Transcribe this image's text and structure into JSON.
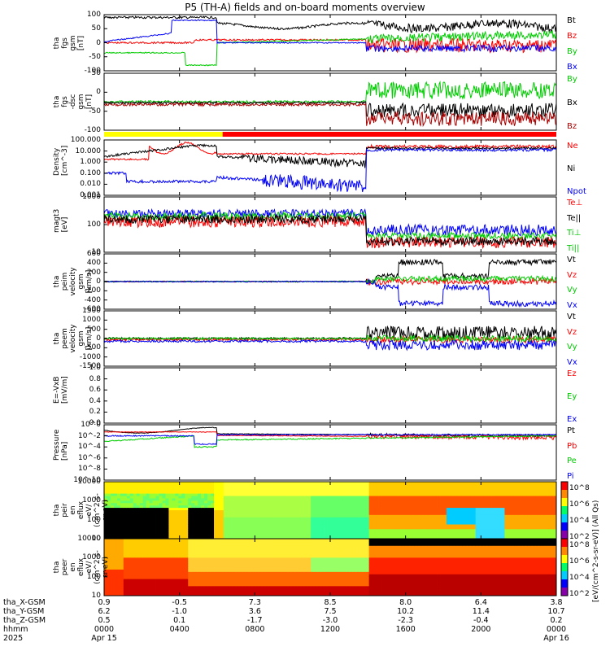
{
  "title": "P5 (TH-A) fields and on-board moments overview",
  "chart_data": [
    {
      "type": "line",
      "ylabel": "tha\nfgs\ngsm\n[nT]",
      "yticks": [
        "100",
        "50",
        "0",
        "-50",
        "-100"
      ],
      "ylim": [
        -100,
        100
      ],
      "series": [
        {
          "name": "Bt",
          "color": "#000000"
        },
        {
          "name": "Bz",
          "color": "#ff0000"
        },
        {
          "name": "By",
          "color": "#00cc00"
        },
        {
          "name": "Bx",
          "color": "#0000ff"
        }
      ]
    },
    {
      "type": "line",
      "ylabel": "tha\nfgs\n-dsc\ngsm\n[nT]",
      "yticks": [
        "50",
        "0",
        "-50",
        "-100"
      ],
      "ylim": [
        -125,
        75
      ],
      "series": [
        {
          "name": "By",
          "color": "#00cc00"
        },
        {
          "name": "Bx",
          "color": "#000000"
        },
        {
          "name": "Bz",
          "color": "#aa0000"
        }
      ]
    },
    {
      "type": "line",
      "ylabel": "Density\n[cm^-3]",
      "yticks": [
        "100.000",
        "10.000",
        "1.000",
        "0.100",
        "0.010",
        "0.001"
      ],
      "log": true,
      "series": [
        {
          "name": "Ne",
          "color": "#ff0000"
        },
        {
          "name": "Ni",
          "color": "#000000"
        },
        {
          "name": "Npot",
          "color": "#0000ff"
        }
      ]
    },
    {
      "type": "line",
      "ylabel": "magt3\n[eV]",
      "yticks": [
        "1000",
        "100",
        "10"
      ],
      "log": true,
      "series": [
        {
          "name": "Te⊥",
          "color": "#ff0000"
        },
        {
          "name": "Te||",
          "color": "#000000"
        },
        {
          "name": "Ti⊥",
          "color": "#00cc00"
        },
        {
          "name": "Ti||",
          "color": "#00cc00"
        }
      ]
    },
    {
      "type": "line",
      "ylabel": "tha\npeim\nvelocity\ngsm\n[km/s]",
      "yticks": [
        "600",
        "400",
        "200",
        "0",
        "-200",
        "-400",
        "-600"
      ],
      "ylim": [
        -600,
        600
      ],
      "series": [
        {
          "name": "Vt",
          "color": "#000000"
        },
        {
          "name": "Vz",
          "color": "#ff0000"
        },
        {
          "name": "Vy",
          "color": "#00cc00"
        },
        {
          "name": "Vx",
          "color": "#0000ff"
        }
      ]
    },
    {
      "type": "line",
      "ylabel": "tha\npeem\nvelocity\ngsm\n[km/s]",
      "yticks": [
        "1500",
        "1000",
        "500",
        "0",
        "-500",
        "-1000",
        "-1500"
      ],
      "ylim": [
        -1500,
        1500
      ],
      "series": [
        {
          "name": "Vt",
          "color": "#000000"
        },
        {
          "name": "Vz",
          "color": "#ff0000"
        },
        {
          "name": "Vy",
          "color": "#00cc00"
        },
        {
          "name": "Vx",
          "color": "#0000ff"
        }
      ]
    },
    {
      "type": "line",
      "ylabel": "E=-VxB\n[mV/m]",
      "yticks": [
        "1.0",
        "0.8",
        "0.6",
        "0.4",
        "0.2",
        "0.0"
      ],
      "ylim": [
        0,
        1
      ],
      "series": [
        {
          "name": "Ez",
          "color": "#ff0000"
        },
        {
          "name": "Ey",
          "color": "#00cc00"
        },
        {
          "name": "Ex",
          "color": "#0000ff"
        }
      ]
    },
    {
      "type": "line",
      "ylabel": "Pressure\n[nPa]",
      "yticks": [
        "10^0",
        "10^-2",
        "10^-4",
        "10^-6",
        "10^-8",
        "10^-10"
      ],
      "log": true,
      "series": [
        {
          "name": "Pt",
          "color": "#000000"
        },
        {
          "name": "Pb",
          "color": "#ff0000"
        },
        {
          "name": "Pe",
          "color": "#00cc00"
        },
        {
          "name": "Pi",
          "color": "#0000ff"
        }
      ]
    },
    {
      "type": "heatmap",
      "ylabel": "tha\npeir\nen\neflux\neV/\n(cm^2-s-\nsr-eV)",
      "yticks": [
        "10000",
        "1000",
        "100",
        "10"
      ],
      "colorbar_ticks": [
        "10^8",
        "10^6",
        "10^4",
        "10^2"
      ],
      "colorbar_label": "[eV/(cm^2-s-sr-eV)] (All Qs)"
    },
    {
      "type": "heatmap",
      "ylabel": "tha\npeer\nen\neflux\neV/\n(cm^2-s-\nsr-eV)",
      "yticks": [
        "10000",
        "1000",
        "100",
        "10"
      ],
      "colorbar_ticks": [
        "10^8",
        "10^6",
        "10^4",
        "10^2"
      ],
      "colorbar_label": "[eV/(cm^2-s-sr-eV)]"
    }
  ],
  "x_axis": {
    "row_labels": [
      "tha_X-GSM",
      "tha_Y-GSM",
      "tha_Z-GSM",
      "hhmm",
      "2025"
    ],
    "columns": [
      {
        "x": "0.9",
        "y": "6.2",
        "z": "0.5",
        "time": "0000",
        "date": "Apr 15"
      },
      {
        "x": "-0.5",
        "y": "-1.0",
        "z": "0.1",
        "time": "0400",
        "date": ""
      },
      {
        "x": "7.3",
        "y": "3.6",
        "z": "-1.7",
        "time": "0800",
        "date": ""
      },
      {
        "x": "8.5",
        "y": "7.5",
        "z": "-3.0",
        "time": "1200",
        "date": ""
      },
      {
        "x": "8.0",
        "y": "10.2",
        "z": "-2.3",
        "time": "1600",
        "date": ""
      },
      {
        "x": "6.4",
        "y": "11.4",
        "z": "-0.4",
        "time": "2000",
        "date": ""
      },
      {
        "x": "3.8",
        "y": "10.7",
        "z": "0.2",
        "time": "0000",
        "date": "Apr 16"
      }
    ]
  },
  "status_bar": {
    "colors": [
      "#ffff00",
      "#ff0000"
    ],
    "switch_fraction": 0.262
  }
}
